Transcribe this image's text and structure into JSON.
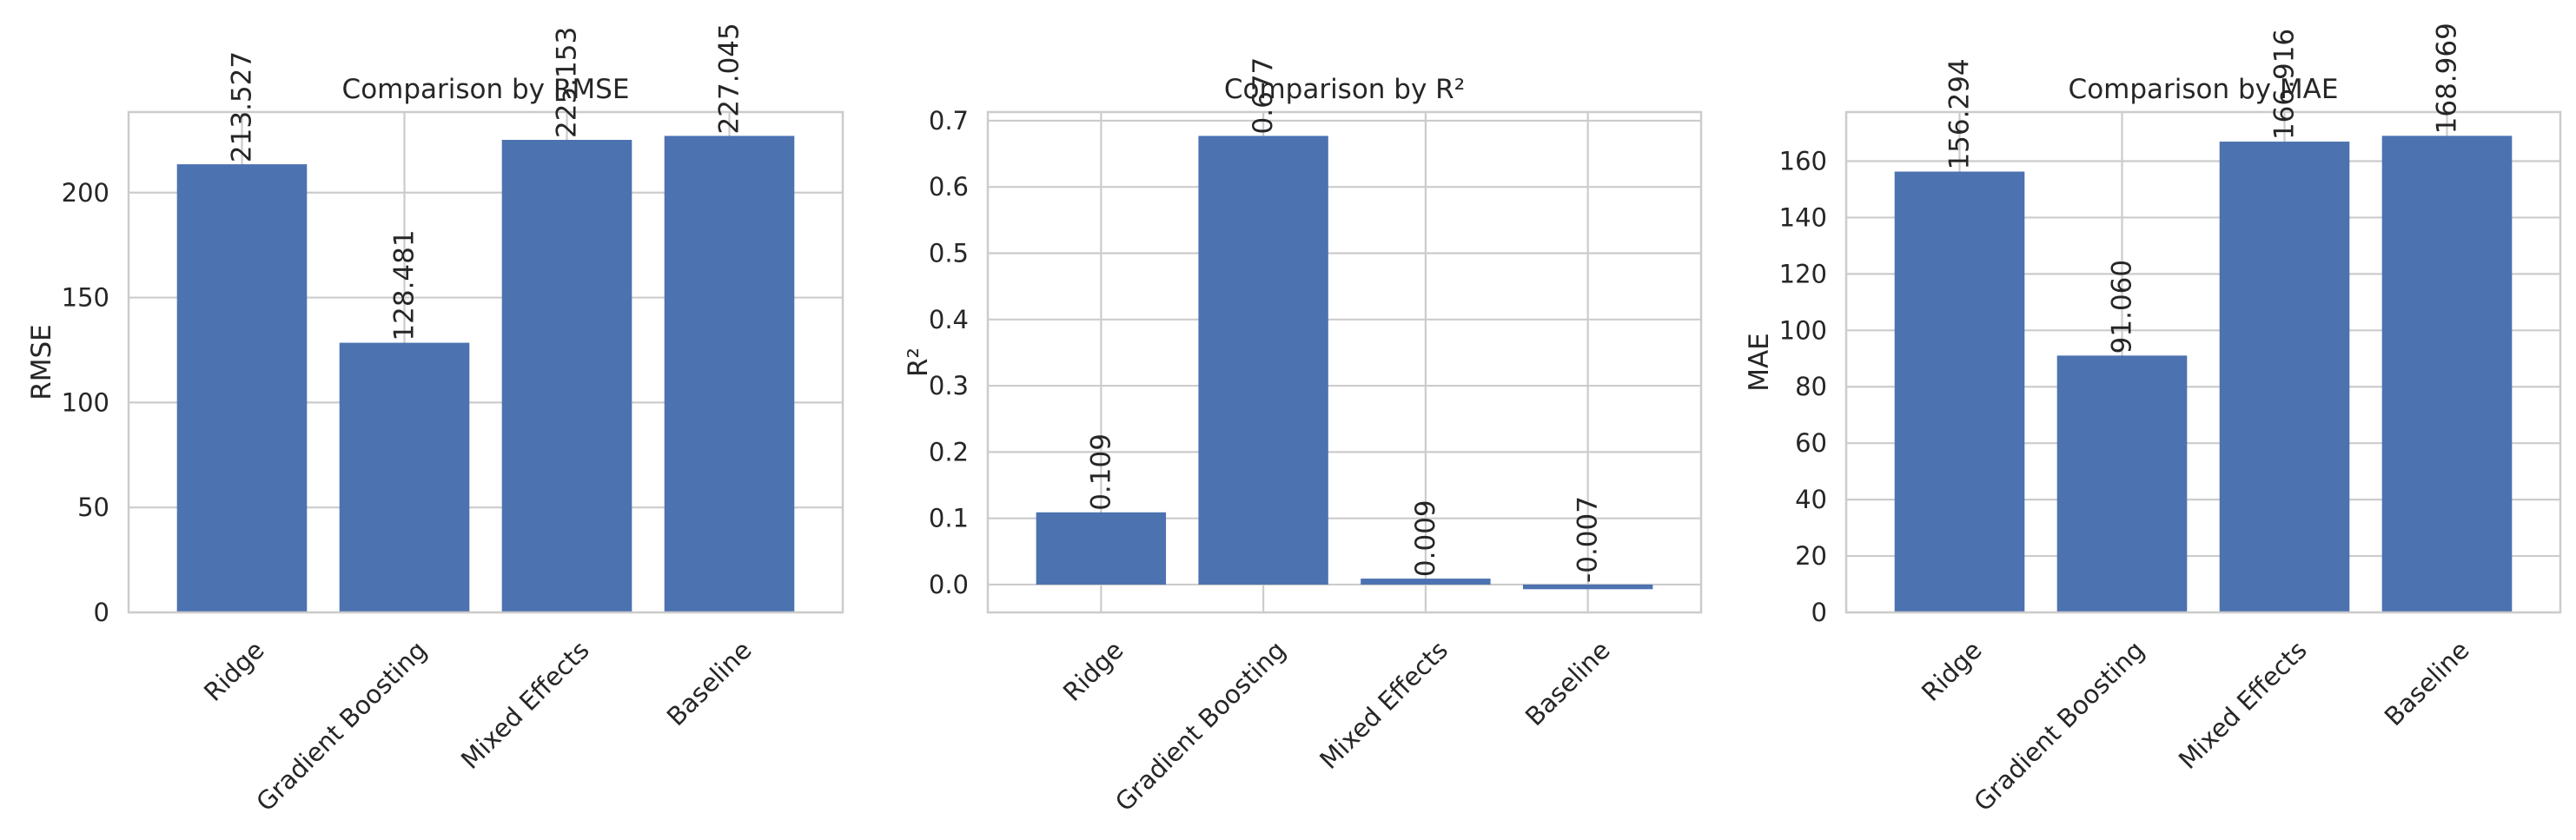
{
  "chart_data": [
    {
      "type": "bar",
      "title": "Comparison by RMSE",
      "ylabel": "RMSE",
      "categories": [
        "Ridge",
        "Gradient Boosting",
        "Mixed Effects",
        "Baseline"
      ],
      "values": [
        213.527,
        128.481,
        225.153,
        227.045
      ],
      "value_labels": [
        "213.527",
        "128.481",
        "225.153",
        "227.045"
      ],
      "ylim": [
        0,
        238.4
      ],
      "yticks": [
        0,
        50,
        100,
        150,
        200
      ],
      "ytick_labels": [
        "0",
        "50",
        "100",
        "150",
        "200"
      ],
      "grid": true
    },
    {
      "type": "bar",
      "title": "Comparison by R²",
      "ylabel": "R²",
      "categories": [
        "Ridge",
        "Gradient Boosting",
        "Mixed Effects",
        "Baseline"
      ],
      "values": [
        0.109,
        0.677,
        0.009,
        -0.007
      ],
      "value_labels": [
        "0.109",
        "0.677",
        "0.009",
        "-0.007"
      ],
      "ylim": [
        -0.042,
        0.713
      ],
      "yticks": [
        0.0,
        0.1,
        0.2,
        0.3,
        0.4,
        0.5,
        0.6,
        0.7
      ],
      "ytick_labels": [
        "0.0",
        "0.1",
        "0.2",
        "0.3",
        "0.4",
        "0.5",
        "0.6",
        "0.7"
      ],
      "grid": true
    },
    {
      "type": "bar",
      "title": "Comparison by MAE",
      "ylabel": "MAE",
      "categories": [
        "Ridge",
        "Gradient Boosting",
        "Mixed Effects",
        "Baseline"
      ],
      "values": [
        156.294,
        91.06,
        166.916,
        168.969
      ],
      "value_labels": [
        "156.294",
        "91.060",
        "166.916",
        "168.969"
      ],
      "ylim": [
        0,
        177.4
      ],
      "yticks": [
        0,
        20,
        40,
        60,
        80,
        100,
        120,
        140,
        160
      ],
      "ytick_labels": [
        "0",
        "20",
        "40",
        "60",
        "80",
        "100",
        "120",
        "140",
        "160"
      ],
      "grid": true
    }
  ],
  "colors": {
    "bar": "#4c72b0",
    "grid": "#cccccc",
    "frame": "#cccccc",
    "text": "#262626",
    "background": "#ffffff"
  }
}
